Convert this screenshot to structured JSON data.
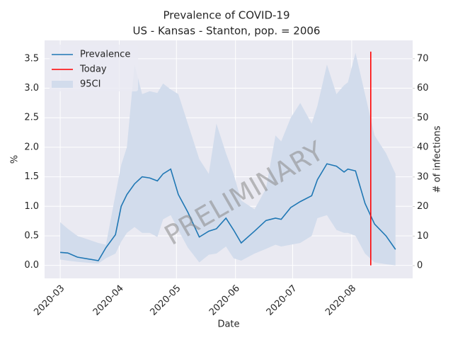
{
  "chart_data": {
    "type": "line",
    "title": "Prevalence of COVID-19",
    "subtitle": "US - Kansas - Stanton, pop. = 2006",
    "xlabel": "Date",
    "ylabel": "%",
    "y2label": "# of infections",
    "watermark": "PRELIMINARY",
    "x": [
      0,
      4,
      9,
      20,
      24,
      29,
      32,
      35,
      39,
      43,
      47,
      51,
      54,
      58,
      62,
      67,
      73,
      78,
      82,
      87,
      91,
      95,
      102,
      108,
      113,
      116,
      121,
      126,
      132,
      135,
      140,
      145,
      149,
      151,
      155,
      160,
      165,
      171,
      176
    ],
    "series": [
      {
        "name": "Prevalence",
        "color": "#1f77b4",
        "values": [
          0.22,
          0.21,
          0.14,
          0.08,
          0.3,
          0.52,
          1.0,
          1.2,
          1.38,
          1.5,
          1.48,
          1.43,
          1.55,
          1.63,
          1.2,
          0.9,
          0.48,
          0.58,
          0.62,
          0.8,
          0.6,
          0.38,
          0.58,
          0.76,
          0.8,
          0.78,
          0.98,
          1.08,
          1.18,
          1.45,
          1.72,
          1.68,
          1.58,
          1.63,
          1.6,
          1.05,
          0.7,
          0.5,
          0.27
        ]
      },
      {
        "name": "95CI",
        "color": "#d2dcec",
        "upper": [
          0.73,
          0.62,
          0.5,
          0.38,
          0.35,
          1.2,
          1.7,
          2.0,
          3.4,
          2.9,
          2.95,
          2.92,
          3.08,
          2.98,
          2.9,
          2.4,
          1.8,
          1.55,
          2.4,
          1.9,
          1.55,
          1.1,
          0.95,
          1.3,
          2.2,
          2.1,
          2.5,
          2.75,
          2.4,
          2.7,
          3.4,
          2.9,
          3.05,
          3.1,
          3.6,
          2.9,
          2.2,
          1.9,
          1.55
        ],
        "lower": [
          0.1,
          0.08,
          0.06,
          0.03,
          0.12,
          0.2,
          0.4,
          0.55,
          0.65,
          0.55,
          0.55,
          0.48,
          0.78,
          0.85,
          0.6,
          0.3,
          0.05,
          0.18,
          0.2,
          0.32,
          0.12,
          0.08,
          0.2,
          0.28,
          0.35,
          0.32,
          0.35,
          0.38,
          0.5,
          0.8,
          0.85,
          0.6,
          0.55,
          0.55,
          0.5,
          0.2,
          0.05,
          0.02,
          0.0
        ]
      }
    ],
    "today": {
      "name": "Today",
      "color": "#ff0000",
      "x": 163,
      "values": [
        0,
        3.62
      ]
    },
    "xlim": [
      -8.2,
      185
    ],
    "xticks": [
      {
        "value": 0,
        "label": "2020-03"
      },
      {
        "value": 31,
        "label": "2020-04"
      },
      {
        "value": 61,
        "label": "2020-05"
      },
      {
        "value": 92,
        "label": "2020-06"
      },
      {
        "value": 122,
        "label": "2020-07"
      },
      {
        "value": 153,
        "label": "2020-08"
      }
    ],
    "ylim": [
      -0.22,
      3.81
    ],
    "yticks": [
      {
        "value": 0,
        "label": "0.0"
      },
      {
        "value": 0.5,
        "label": "0.5"
      },
      {
        "value": 1,
        "label": "1.0"
      },
      {
        "value": 1.5,
        "label": "1.5"
      },
      {
        "value": 2,
        "label": "2.0"
      },
      {
        "value": 2.5,
        "label": "2.5"
      },
      {
        "value": 3,
        "label": "3.0"
      },
      {
        "value": 3.5,
        "label": "3.5"
      }
    ],
    "y2lim": [
      -4.3,
      76.2
    ],
    "y2ticks": [
      0,
      10,
      20,
      30,
      40,
      50,
      60,
      70
    ],
    "grid": true,
    "legend": "upper left"
  }
}
